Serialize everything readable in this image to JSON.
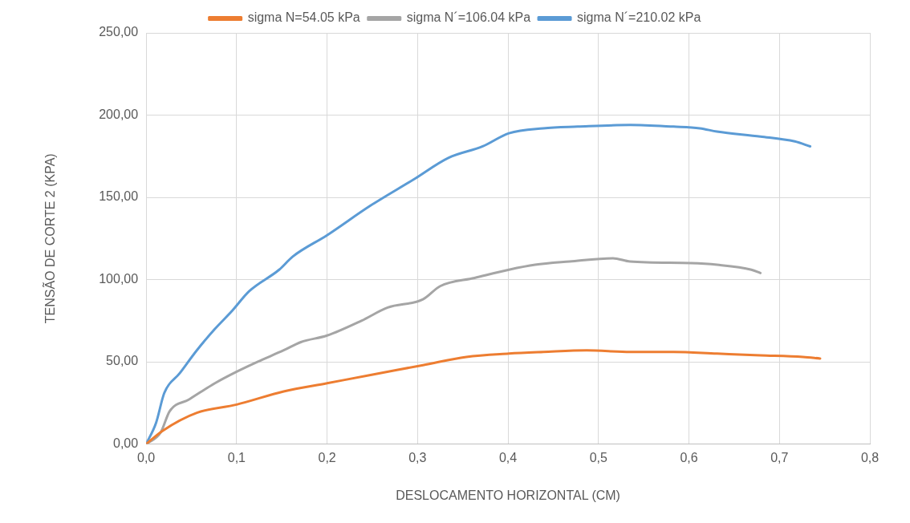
{
  "chart_data": {
    "type": "line",
    "xlabel": "DESLOCAMENTO HORIZONTAL (CM)",
    "ylabel": "TENSÃO DE CORTE 2 (KPA)",
    "xlim": [
      0,
      0.8
    ],
    "xticks": [
      {
        "value": 0,
        "label": "0,0"
      },
      {
        "value": 0.1,
        "label": "0,1"
      },
      {
        "value": 0.2,
        "label": "0,2"
      },
      {
        "value": 0.3,
        "label": "0,3"
      },
      {
        "value": 0.4,
        "label": "0,4"
      },
      {
        "value": 0.5,
        "label": "0,5"
      },
      {
        "value": 0.6,
        "label": "0,6"
      },
      {
        "value": 0.7,
        "label": "0,7"
      },
      {
        "value": 0.8,
        "label": "0,8"
      }
    ],
    "ylim": [
      0,
      250
    ],
    "yticks": [
      {
        "value": 0,
        "label": "0,00"
      },
      {
        "value": 50,
        "label": "50,00"
      },
      {
        "value": 100,
        "label": "100,00"
      },
      {
        "value": 150,
        "label": "150,00"
      },
      {
        "value": 200,
        "label": "200,00"
      },
      {
        "value": 250,
        "label": "250,00"
      }
    ],
    "grid": true,
    "legend": "top",
    "marker": "none",
    "line_style": "solid",
    "series": [
      {
        "name": "sigma N=54.05 kPa",
        "color": "#ed7d31",
        "x": [
          0,
          0.018,
          0.056,
          0.1,
          0.152,
          0.2,
          0.248,
          0.306,
          0.354,
          0.401,
          0.439,
          0.487,
          0.535,
          0.583,
          0.631,
          0.679,
          0.726,
          0.745
        ],
        "values": [
          0,
          8,
          19,
          24,
          32,
          37,
          42,
          48,
          53,
          55,
          56,
          57,
          56,
          56,
          55,
          54,
          53,
          52
        ]
      },
      {
        "name": "sigma N´=106.04 kPa",
        "color": "#a5a5a5",
        "x": [
          0,
          0.016,
          0.026,
          0.047,
          0.076,
          0.1,
          0.123,
          0.152,
          0.171,
          0.2,
          0.238,
          0.267,
          0.306,
          0.325,
          0.363,
          0.401,
          0.43,
          0.468,
          0.516,
          0.535,
          0.602,
          0.631,
          0.669,
          0.679
        ],
        "values": [
          0,
          7,
          20,
          27,
          37,
          44,
          50,
          57,
          62,
          66,
          75,
          83,
          88,
          96,
          101,
          106,
          109,
          111,
          113,
          111,
          110,
          109,
          106,
          104
        ]
      },
      {
        "name": "sigma N´=210.02 kPa",
        "color": "#5b9bd5",
        "x": [
          0,
          0.011,
          0.02,
          0.037,
          0.056,
          0.076,
          0.095,
          0.114,
          0.147,
          0.162,
          0.2,
          0.248,
          0.296,
          0.334,
          0.372,
          0.401,
          0.439,
          0.477,
          0.535,
          0.583,
          0.612,
          0.631,
          0.679,
          0.717,
          0.734
        ],
        "values": [
          0,
          13,
          31,
          43,
          57,
          70,
          81,
          93,
          106,
          114,
          127,
          145,
          161,
          174,
          181,
          189,
          192,
          193,
          194,
          193,
          192,
          190,
          187,
          184,
          181
        ]
      }
    ]
  }
}
